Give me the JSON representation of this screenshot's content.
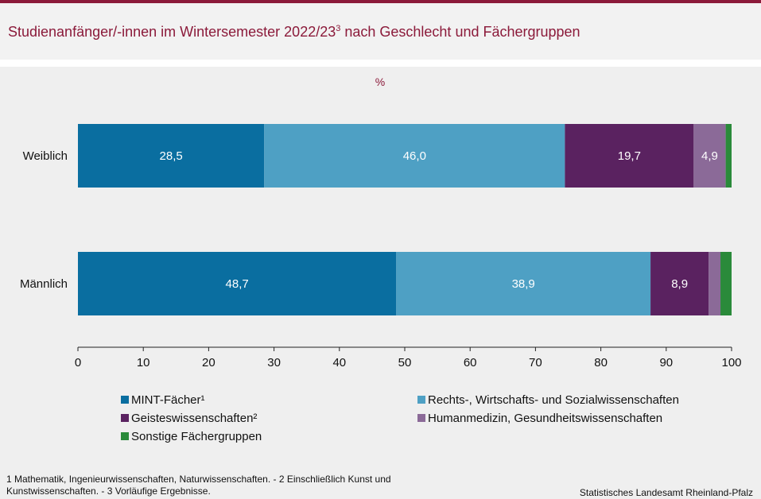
{
  "header": {
    "title": "Studienanfänger/-innen im Wintersemester 2022/23",
    "title_sup": "3",
    "title_rest": " nach Geschlecht und Fächergruppen"
  },
  "chart_data": {
    "type": "bar",
    "orientation": "horizontal",
    "stacked": true,
    "unit_label": "%",
    "categories": [
      "Weiblich",
      "Männlich"
    ],
    "series": [
      {
        "name": "MINT-Fächer¹",
        "color": "#0a6ea0",
        "values": [
          28.5,
          48.7
        ],
        "labels": [
          "28,5",
          "48,7"
        ]
      },
      {
        "name": "Rechts-, Wirtschafts- und Sozialwissenschaften",
        "color": "#4ea0c4",
        "values": [
          46.0,
          38.9
        ],
        "labels": [
          "46,0",
          "38,9"
        ]
      },
      {
        "name": "Geisteswissenschaften²",
        "color": "#5a2260",
        "values": [
          19.7,
          8.9
        ],
        "labels": [
          "19,7",
          "8,9"
        ]
      },
      {
        "name": "Humanmedizin, Gesundheitswissenschaften",
        "color": "#8b6a98",
        "values": [
          4.9,
          1.8
        ],
        "labels": [
          "4,9",
          ""
        ]
      },
      {
        "name": "Sonstige Fächergruppen",
        "color": "#2a8a3a",
        "values": [
          0.9,
          1.7
        ],
        "labels": [
          "",
          ""
        ]
      }
    ],
    "xlim": [
      0,
      100
    ],
    "xticks": [
      "0",
      "10",
      "20",
      "30",
      "40",
      "50",
      "60",
      "70",
      "80",
      "90",
      "100"
    ],
    "legend_position": "bottom"
  },
  "footnote": "1 Mathematik, Ingenieurwissenschaften,   Naturwissenschaften.  - 2 Einschließlich Kunst und Kunstwissenschaften.  - 3 Vorläufige  Ergebnisse.",
  "source": "Statistisches Landesamt Rheinland-Pfalz"
}
